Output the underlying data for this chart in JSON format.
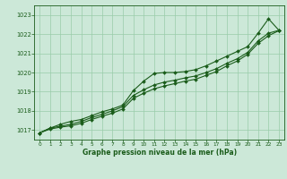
{
  "title": "Graphe pression niveau de la mer (hPa)",
  "background_color": "#cce8d8",
  "plot_bg_color": "#cce8d8",
  "grid_color": "#99ccaa",
  "line_color": "#1a5c1a",
  "xlim": [
    -0.5,
    23.5
  ],
  "ylim": [
    1016.5,
    1023.5
  ],
  "yticks": [
    1017,
    1018,
    1019,
    1020,
    1021,
    1022,
    1023
  ],
  "xticks": [
    0,
    1,
    2,
    3,
    4,
    5,
    6,
    7,
    8,
    9,
    10,
    11,
    12,
    13,
    14,
    15,
    16,
    17,
    18,
    19,
    20,
    21,
    22,
    23
  ],
  "line1": [
    1016.85,
    1017.1,
    1017.3,
    1017.45,
    1017.55,
    1017.75,
    1017.95,
    1018.1,
    1018.3,
    1019.05,
    1019.55,
    1019.95,
    1020.0,
    1020.0,
    1020.05,
    1020.15,
    1020.35,
    1020.6,
    1020.85,
    1021.1,
    1021.35,
    1022.05,
    1022.8,
    1022.2
  ],
  "line2": [
    1016.85,
    1017.1,
    1017.2,
    1017.3,
    1017.45,
    1017.65,
    1017.82,
    1018.0,
    1018.22,
    1018.8,
    1019.1,
    1019.35,
    1019.5,
    1019.6,
    1019.72,
    1019.82,
    1020.0,
    1020.2,
    1020.48,
    1020.72,
    1021.05,
    1021.65,
    1022.05,
    1022.2
  ],
  "line3": [
    1016.85,
    1017.05,
    1017.15,
    1017.22,
    1017.35,
    1017.55,
    1017.72,
    1017.88,
    1018.1,
    1018.65,
    1018.92,
    1019.15,
    1019.3,
    1019.42,
    1019.55,
    1019.65,
    1019.85,
    1020.05,
    1020.35,
    1020.6,
    1020.95,
    1021.52,
    1021.92,
    1022.18
  ]
}
